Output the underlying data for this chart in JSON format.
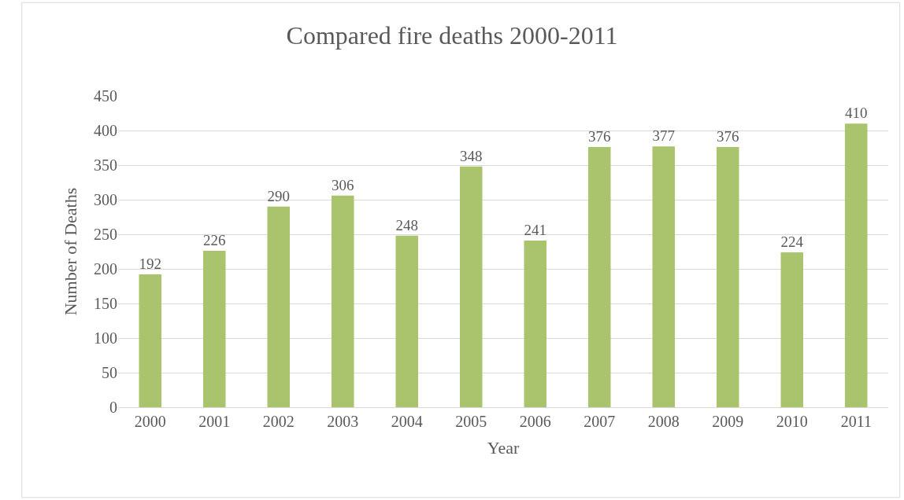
{
  "chart_data": {
    "type": "bar",
    "title": "Compared fire deaths 2000-2011",
    "xlabel": "Year",
    "ylabel": "Number of Deaths",
    "categories": [
      "2000",
      "2001",
      "2002",
      "2003",
      "2004",
      "2005",
      "2006",
      "2007",
      "2008",
      "2009",
      "2010",
      "2011"
    ],
    "values": [
      192,
      226,
      290,
      306,
      248,
      348,
      241,
      376,
      377,
      376,
      224,
      410
    ],
    "color": "#a9c46c",
    "ylim": [
      0,
      450
    ],
    "yticks": [
      0,
      50,
      100,
      150,
      200,
      250,
      300,
      350,
      400,
      450
    ],
    "grid": "y",
    "data_labels": true
  }
}
